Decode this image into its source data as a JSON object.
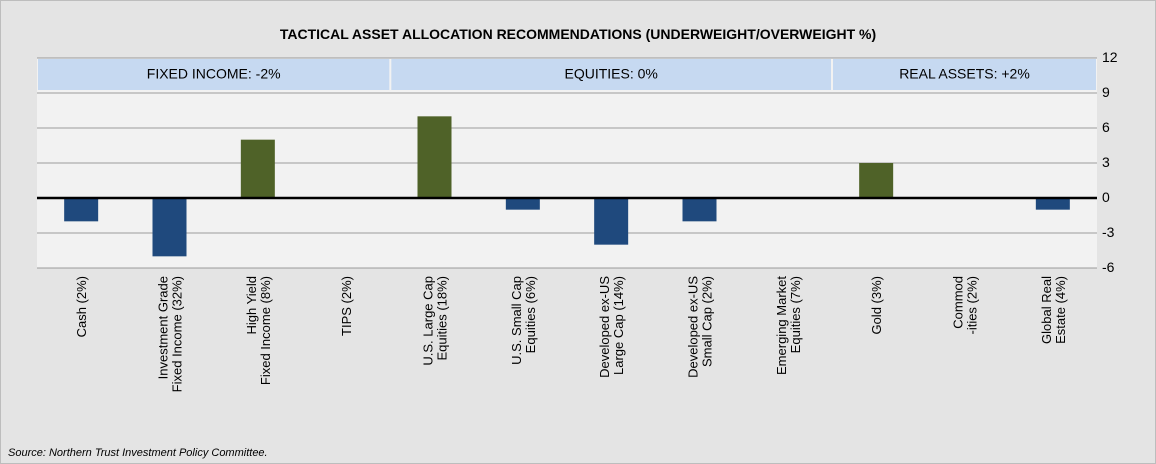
{
  "chart_data": {
    "type": "bar",
    "title": "TACTICAL ASSET ALLOCATION RECOMMENDATIONS (UNDERWEIGHT/OVERWEIGHT %)",
    "categories": [
      [
        "Cash (2%)"
      ],
      [
        "Investment Grade",
        "Fixed Income (32%)"
      ],
      [
        "High Yield",
        "Fixed Income (8%)"
      ],
      [
        "TIPS (2%)"
      ],
      [
        "U.S. Large Cap",
        "Equities (18%)"
      ],
      [
        "U.S. Small Cap",
        "Equities (6%)"
      ],
      [
        "Developed ex-US",
        "Large Cap (14%)"
      ],
      [
        "Developed ex-US",
        "Small Cap (2%)"
      ],
      [
        "Emerging Market",
        "Equities (7%)"
      ],
      [
        "Gold (3%)"
      ],
      [
        "Commod",
        "-ities (2%)"
      ],
      [
        "Global Real",
        "Estate (4%)"
      ]
    ],
    "values": [
      -2,
      -5,
      5,
      0,
      7,
      -1,
      -4,
      -2,
      0,
      3,
      0,
      -1
    ],
    "colors": [
      "#1f497d",
      "#1f497d",
      "#4f6228",
      "#4f6228",
      "#4f6228",
      "#1f497d",
      "#1f497d",
      "#1f497d",
      "#4f6228",
      "#4f6228",
      "#4f6228",
      "#1f497d"
    ],
    "groups": [
      {
        "label": "FIXED INCOME: -2%",
        "count": 4
      },
      {
        "label": "EQUITIES: 0%",
        "count": 5
      },
      {
        "label": "REAL ASSETS: +2%",
        "count": 3
      }
    ],
    "ylim": [
      -6,
      12
    ],
    "yticks": [
      -6,
      -3,
      0,
      3,
      6,
      9,
      12
    ],
    "grid": true,
    "note": "Source:  Northern  Trust  Investment Policy Committee."
  }
}
